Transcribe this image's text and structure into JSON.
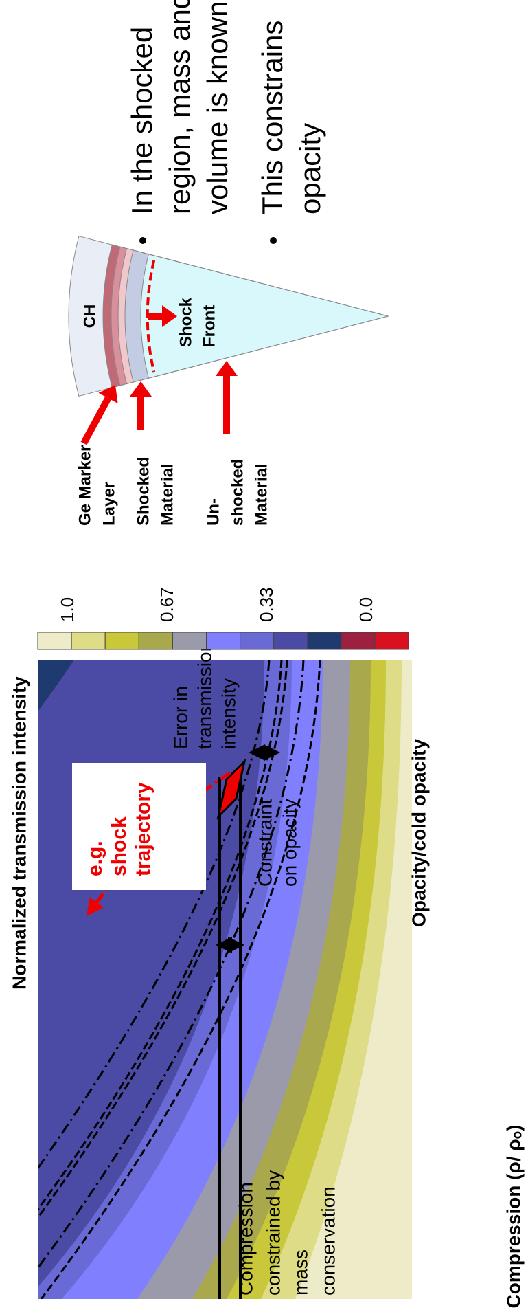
{
  "title": "Normalized  transmission intensity",
  "colorbar": {
    "labels": [
      "1.0",
      "0.67",
      "0.33",
      "0.0"
    ]
  },
  "plot": {
    "x_label": "Opacity/cold opacity",
    "y_label": "Compression (ρ/ ρₒ)",
    "trajectory_label": [
      "e.g.",
      "shock",
      "trajectory"
    ],
    "error_label": [
      "Error in",
      "transmission",
      "intensity"
    ],
    "opacity_label": [
      "Constraint",
      "on opacity"
    ],
    "compression_label": [
      "Compression",
      "constrained by",
      "mass",
      "conservation"
    ]
  },
  "diagram": {
    "outer_layer": "CH",
    "shock_front": [
      "Shock",
      "Front"
    ],
    "ge_label": [
      "Ge Marker",
      "Layer"
    ],
    "shocked_label": [
      "Shocked",
      "Material"
    ],
    "unshocked_label": [
      "Un-",
      "shocked",
      "Material"
    ]
  },
  "bullets": [
    [
      "In the shocked",
      "region, mass and",
      "volume is known"
    ],
    [
      "This constrains",
      "opacity"
    ]
  ]
}
